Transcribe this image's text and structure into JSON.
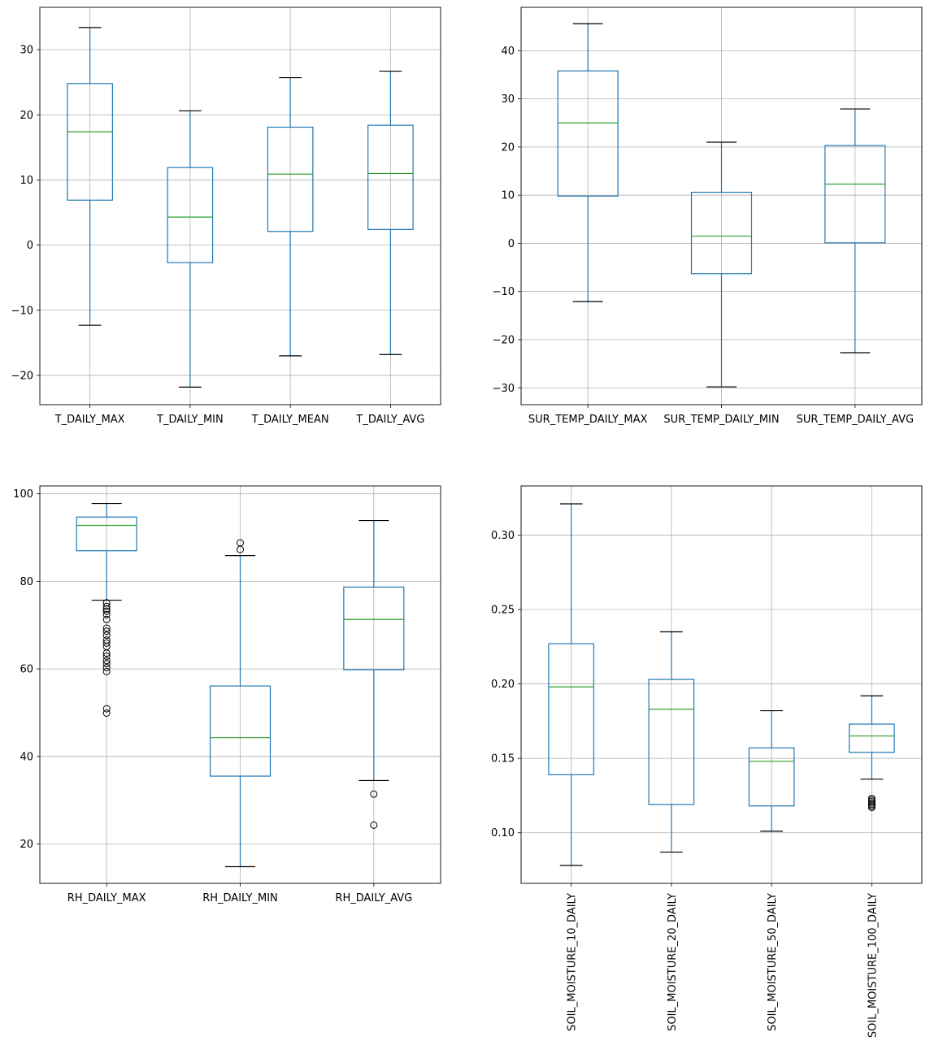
{
  "chart_data": [
    {
      "type": "boxplot",
      "title": "",
      "ylim": [
        -24.5,
        36.5
      ],
      "yticks": [
        -20,
        -10,
        0,
        10,
        20,
        30
      ],
      "grid": true,
      "categories": [
        "T_DAILY_MAX",
        "T_DAILY_MIN",
        "T_DAILY_MEAN",
        "T_DAILY_AVG"
      ],
      "boxes": [
        {
          "label": "T_DAILY_MAX",
          "whislo": -12.3,
          "q1": 6.9,
          "med": 17.4,
          "q3": 24.8,
          "whishi": 33.4,
          "fliers": []
        },
        {
          "label": "T_DAILY_MIN",
          "whislo": -21.8,
          "q1": -2.7,
          "med": 4.3,
          "q3": 11.9,
          "whishi": 20.6,
          "fliers": []
        },
        {
          "label": "T_DAILY_MEAN",
          "whislo": -17.0,
          "q1": 2.1,
          "med": 10.9,
          "q3": 18.1,
          "whishi": 25.7,
          "fliers": []
        },
        {
          "label": "T_DAILY_AVG",
          "whislo": -16.8,
          "q1": 2.4,
          "med": 11.0,
          "q3": 18.4,
          "whishi": 26.7,
          "fliers": []
        }
      ]
    },
    {
      "type": "boxplot",
      "title": "",
      "ylim": [
        -33.5,
        49.0
      ],
      "yticks": [
        -30,
        -20,
        -10,
        0,
        10,
        20,
        30,
        40
      ],
      "grid": true,
      "categories": [
        "SUR_TEMP_DAILY_MAX",
        "SUR_TEMP_DAILY_MIN",
        "SUR_TEMP_DAILY_AVG"
      ],
      "boxes": [
        {
          "label": "SUR_TEMP_DAILY_MAX",
          "whislo": -12.1,
          "q1": 9.8,
          "med": 25.0,
          "q3": 35.8,
          "whishi": 45.6,
          "fliers": []
        },
        {
          "label": "SUR_TEMP_DAILY_MIN",
          "whislo": -29.8,
          "q1": -6.3,
          "med": 1.5,
          "q3": 10.6,
          "whishi": 21.0,
          "fliers": []
        },
        {
          "label": "SUR_TEMP_DAILY_AVG",
          "whislo": -22.7,
          "q1": 0.1,
          "med": 12.3,
          "q3": 20.3,
          "whishi": 27.9,
          "fliers": []
        }
      ]
    },
    {
      "type": "boxplot",
      "title": "",
      "ylim": [
        11.0,
        101.8
      ],
      "yticks": [
        20,
        40,
        60,
        80,
        100
      ],
      "grid": true,
      "categories": [
        "RH_DAILY_MAX",
        "RH_DAILY_MIN",
        "RH_DAILY_AVG"
      ],
      "boxes": [
        {
          "label": "RH_DAILY_MAX",
          "whislo": 75.7,
          "q1": 87.0,
          "med": 92.8,
          "q3": 94.7,
          "whishi": 97.8,
          "fliers": [
            75.1,
            74.3,
            73.7,
            73.2,
            72.4,
            71.3,
            69.3,
            68.6,
            67.7,
            66.6,
            65.9,
            65.1,
            63.6,
            62.9,
            61.9,
            61.2,
            60.3,
            59.4,
            50.9,
            49.9
          ]
        },
        {
          "label": "RH_DAILY_MIN",
          "whislo": 14.8,
          "q1": 35.5,
          "med": 44.3,
          "q3": 56.1,
          "whishi": 85.9,
          "fliers": [
            87.3,
            88.8
          ]
        },
        {
          "label": "RH_DAILY_AVG",
          "whislo": 34.5,
          "q1": 59.8,
          "med": 71.3,
          "q3": 78.7,
          "whishi": 93.9,
          "fliers": [
            31.4,
            24.3
          ]
        }
      ]
    },
    {
      "type": "boxplot",
      "title": "",
      "ylim": [
        0.066,
        0.333
      ],
      "yticks": [
        0.1,
        0.15,
        0.2,
        0.25,
        0.3
      ],
      "ytick_labels": [
        "0.10",
        "0.15",
        "0.20",
        "0.25",
        "0.30"
      ],
      "grid": true,
      "xtick_rotation": 90,
      "categories": [
        "SOIL_MOISTURE_10_DAILY",
        "SOIL_MOISTURE_20_DAILY",
        "SOIL_MOISTURE_50_DAILY",
        "SOIL_MOISTURE_100_DAILY"
      ],
      "boxes": [
        {
          "label": "SOIL_MOISTURE_10_DAILY",
          "whislo": 0.078,
          "q1": 0.139,
          "med": 0.198,
          "q3": 0.227,
          "whishi": 0.321,
          "fliers": []
        },
        {
          "label": "SOIL_MOISTURE_20_DAILY",
          "whislo": 0.087,
          "q1": 0.119,
          "med": 0.183,
          "q3": 0.203,
          "whishi": 0.235,
          "fliers": []
        },
        {
          "label": "SOIL_MOISTURE_50_DAILY",
          "whislo": 0.101,
          "q1": 0.118,
          "med": 0.148,
          "q3": 0.157,
          "whishi": 0.182,
          "fliers": []
        },
        {
          "label": "SOIL_MOISTURE_100_DAILY",
          "whislo": 0.136,
          "q1": 0.154,
          "med": 0.165,
          "q3": 0.173,
          "whishi": 0.192,
          "fliers": [
            0.123,
            0.122,
            0.121,
            0.12,
            0.119,
            0.118,
            0.117
          ]
        }
      ]
    }
  ],
  "colors": {
    "box": "#1f77b4",
    "median": "#2ca02c",
    "whisker_cap": "#000000",
    "grid": "#b0b0b0",
    "flier": "#000000"
  }
}
